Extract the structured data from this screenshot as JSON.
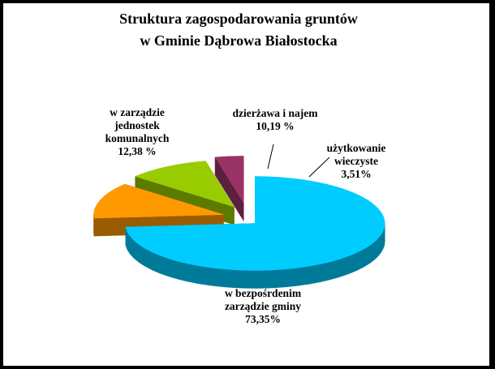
{
  "chart_data": {
    "type": "pie",
    "title_lines": [
      "Struktura zagospodarowania gruntów",
      "w Gminie Dąbrowa Białostocka"
    ],
    "slices": [
      {
        "label_lines": [
          "w bezpośrdenim",
          "zarządzie gminy",
          "73,35%"
        ],
        "value": 73.35,
        "color": "#00ccff",
        "side_color": "#007a99"
      },
      {
        "label_lines": [
          "w zarządzie",
          "jednostek",
          "komunalnych",
          "12,38 %"
        ],
        "value": 12.38,
        "color": "#ff9900",
        "side_color": "#995c00"
      },
      {
        "label_lines": [
          "dzierżawa i najem",
          "10,19 %"
        ],
        "value": 10.19,
        "color": "#99cc00",
        "side_color": "#5c7a00"
      },
      {
        "label_lines": [
          "użytkowanie",
          "wieczyste",
          "3,51%"
        ],
        "value": 3.51,
        "color": "#993366",
        "side_color": "#5c1f3d"
      }
    ],
    "style": "3d-exploded",
    "legend": "none"
  }
}
